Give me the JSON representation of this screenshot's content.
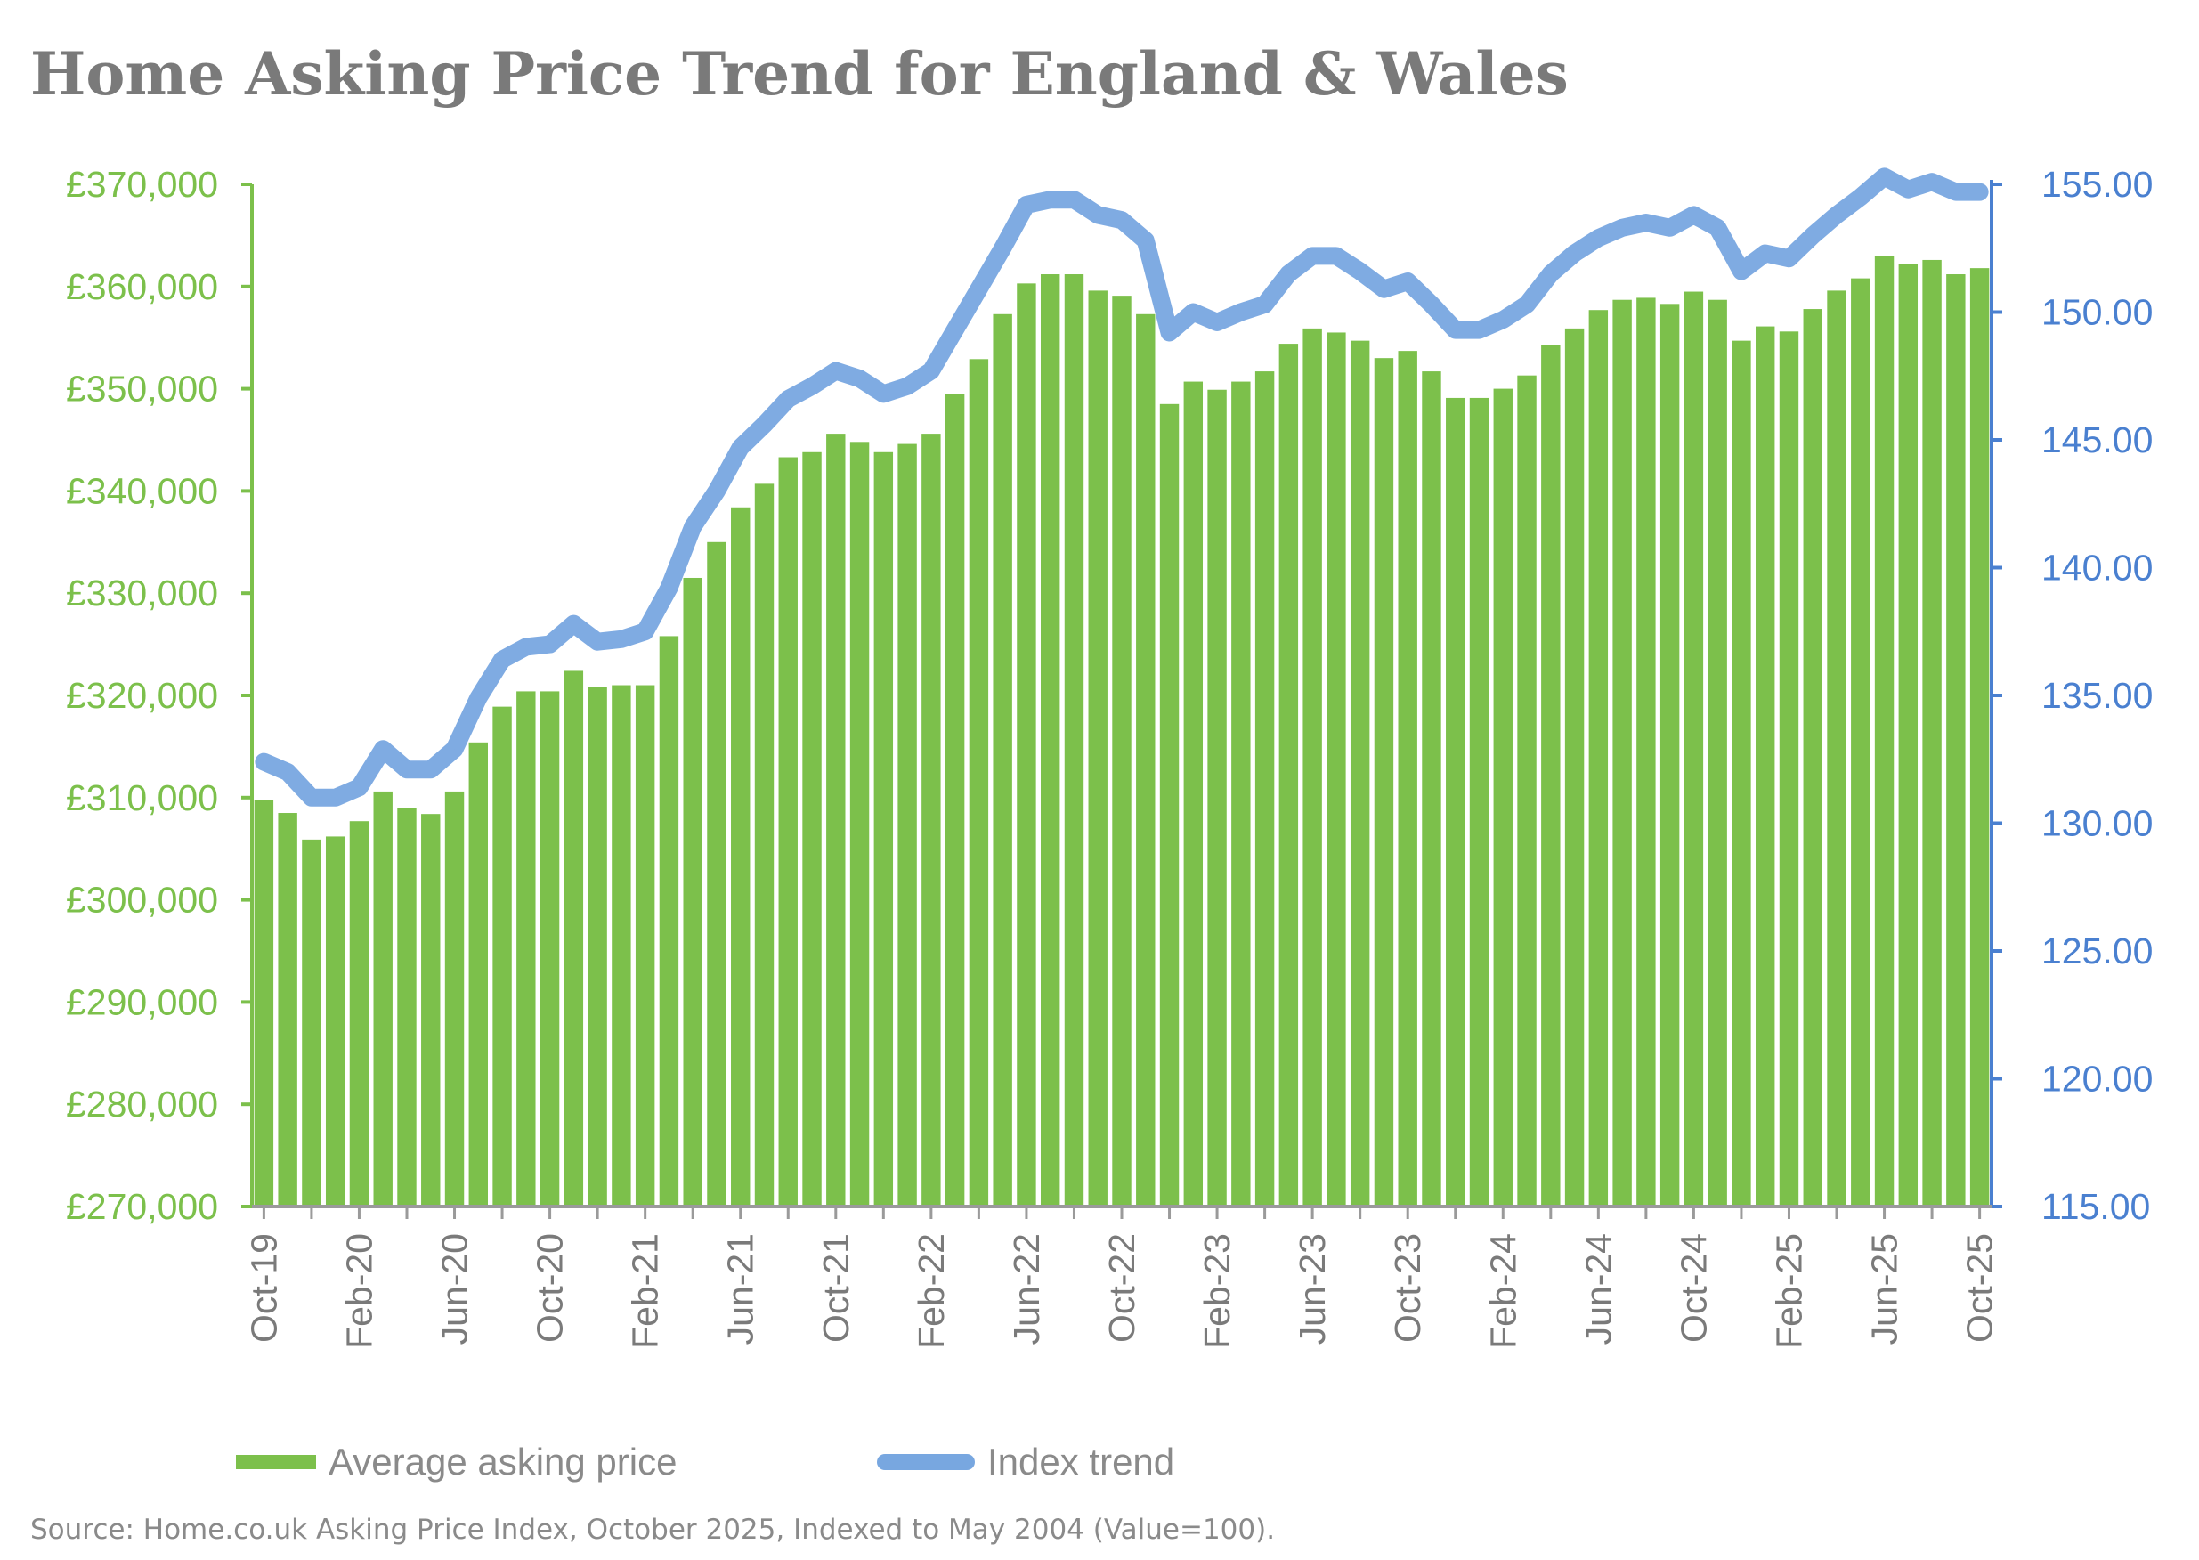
{
  "chart_data": {
    "type": "bar",
    "title": "Home Asking Price Trend for England & Wales",
    "xlabel": "",
    "ylabel": "",
    "y2label": "",
    "ylim": [
      270000,
      370000
    ],
    "y2lim": [
      115,
      155
    ],
    "yticks": [
      "£270,000",
      "£280,000",
      "£290,000",
      "£300,000",
      "£310,000",
      "£320,000",
      "£330,000",
      "£340,000",
      "£350,000",
      "£360,000",
      "£370,000"
    ],
    "y2ticks": [
      "115.00",
      "120.00",
      "125.00",
      "130.00",
      "135.00",
      "140.00",
      "145.00",
      "150.00",
      "155.00"
    ],
    "xtick_labels": [
      "Oct-19",
      "Feb-20",
      "Jun-20",
      "Oct-20",
      "Feb-21",
      "Jun-21",
      "Oct-21",
      "Feb-22",
      "Jun-22",
      "Oct-22",
      "Feb-23",
      "Jun-23",
      "Oct-23",
      "Feb-24",
      "Jun-24",
      "Oct-24",
      "Feb-25",
      "Jun-25",
      "Oct-25"
    ],
    "categories": [
      "Oct-19",
      "Nov-19",
      "Dec-19",
      "Jan-20",
      "Feb-20",
      "Mar-20",
      "Apr-20",
      "May-20",
      "Jun-20",
      "Jul-20",
      "Aug-20",
      "Sep-20",
      "Oct-20",
      "Nov-20",
      "Dec-20",
      "Jan-21",
      "Feb-21",
      "Mar-21",
      "Apr-21",
      "May-21",
      "Jun-21",
      "Jul-21",
      "Aug-21",
      "Sep-21",
      "Oct-21",
      "Nov-21",
      "Dec-21",
      "Jan-22",
      "Feb-22",
      "Mar-22",
      "Apr-22",
      "May-22",
      "Jun-22",
      "Jul-22",
      "Aug-22",
      "Sep-22",
      "Oct-22",
      "Nov-22",
      "Dec-22",
      "Jan-23",
      "Feb-23",
      "Mar-23",
      "Apr-23",
      "May-23",
      "Jun-23",
      "Jul-23",
      "Aug-23",
      "Sep-23",
      "Oct-23",
      "Nov-23",
      "Dec-23",
      "Jan-24",
      "Feb-24",
      "Mar-24",
      "Apr-24",
      "May-24",
      "Jun-24",
      "Jul-24",
      "Aug-24",
      "Sep-24",
      "Oct-24",
      "Nov-24",
      "Dec-24",
      "Jan-25",
      "Feb-25",
      "Mar-25",
      "Apr-25",
      "May-25",
      "Jun-25",
      "Jul-25",
      "Aug-25",
      "Sep-25",
      "Oct-25"
    ],
    "series": [
      {
        "name": "Average asking price",
        "type": "bar",
        "axis": "left",
        "color": "#7cc04b",
        "values": [
          309800,
          308500,
          305900,
          306200,
          307700,
          310600,
          309000,
          308400,
          310600,
          315400,
          318900,
          320400,
          320400,
          322400,
          320800,
          321000,
          321000,
          325800,
          331500,
          335000,
          338400,
          340700,
          343300,
          343800,
          345600,
          344800,
          343800,
          344600,
          345600,
          349500,
          352900,
          357300,
          360300,
          361200,
          361200,
          359600,
          359100,
          357300,
          348500,
          350700,
          349900,
          350700,
          351700,
          354400,
          355900,
          355500,
          354700,
          353000,
          353700,
          351700,
          349100,
          349100,
          350000,
          351300,
          354300,
          355900,
          357700,
          358700,
          358900,
          358300,
          359500,
          358700,
          354700,
          356100,
          355600,
          357800,
          359600,
          360800,
          363000,
          362200,
          362600,
          361200,
          361800
        ]
      },
      {
        "name": "Index trend",
        "type": "line",
        "axis": "right",
        "color": "#78a7e0",
        "values": [
          132.4,
          132.0,
          131.0,
          131.0,
          131.4,
          132.9,
          132.1,
          132.1,
          132.9,
          134.9,
          136.4,
          136.9,
          137.0,
          137.8,
          137.1,
          137.2,
          137.5,
          139.2,
          141.6,
          143.0,
          144.7,
          145.6,
          146.6,
          147.1,
          147.7,
          147.4,
          146.8,
          147.1,
          147.7,
          149.3,
          150.9,
          152.5,
          154.2,
          154.4,
          154.4,
          153.8,
          153.6,
          152.8,
          149.2,
          150.0,
          149.6,
          150.0,
          150.3,
          151.5,
          152.2,
          152.2,
          151.6,
          150.9,
          151.2,
          150.3,
          149.3,
          149.3,
          149.7,
          150.3,
          151.5,
          152.3,
          152.9,
          153.3,
          153.5,
          153.3,
          153.8,
          153.3,
          151.6,
          152.3,
          152.1,
          153.0,
          153.8,
          154.5,
          155.3,
          154.8,
          155.1,
          154.7,
          154.7
        ]
      }
    ],
    "legend": [
      "Average asking price",
      "Index trend"
    ],
    "legend_position": "bottom",
    "grid": false,
    "source": "Source: Home.co.uk Asking Price Index, October 2025, Indexed to May 2004 (Value=100)."
  },
  "colors": {
    "bar": "#7cc04b",
    "line": "#78a7e0",
    "left_axis": "#7cc04b",
    "right_axis": "#4a80d0",
    "title": "#7a7a7a",
    "text": "#8a8a8a"
  }
}
